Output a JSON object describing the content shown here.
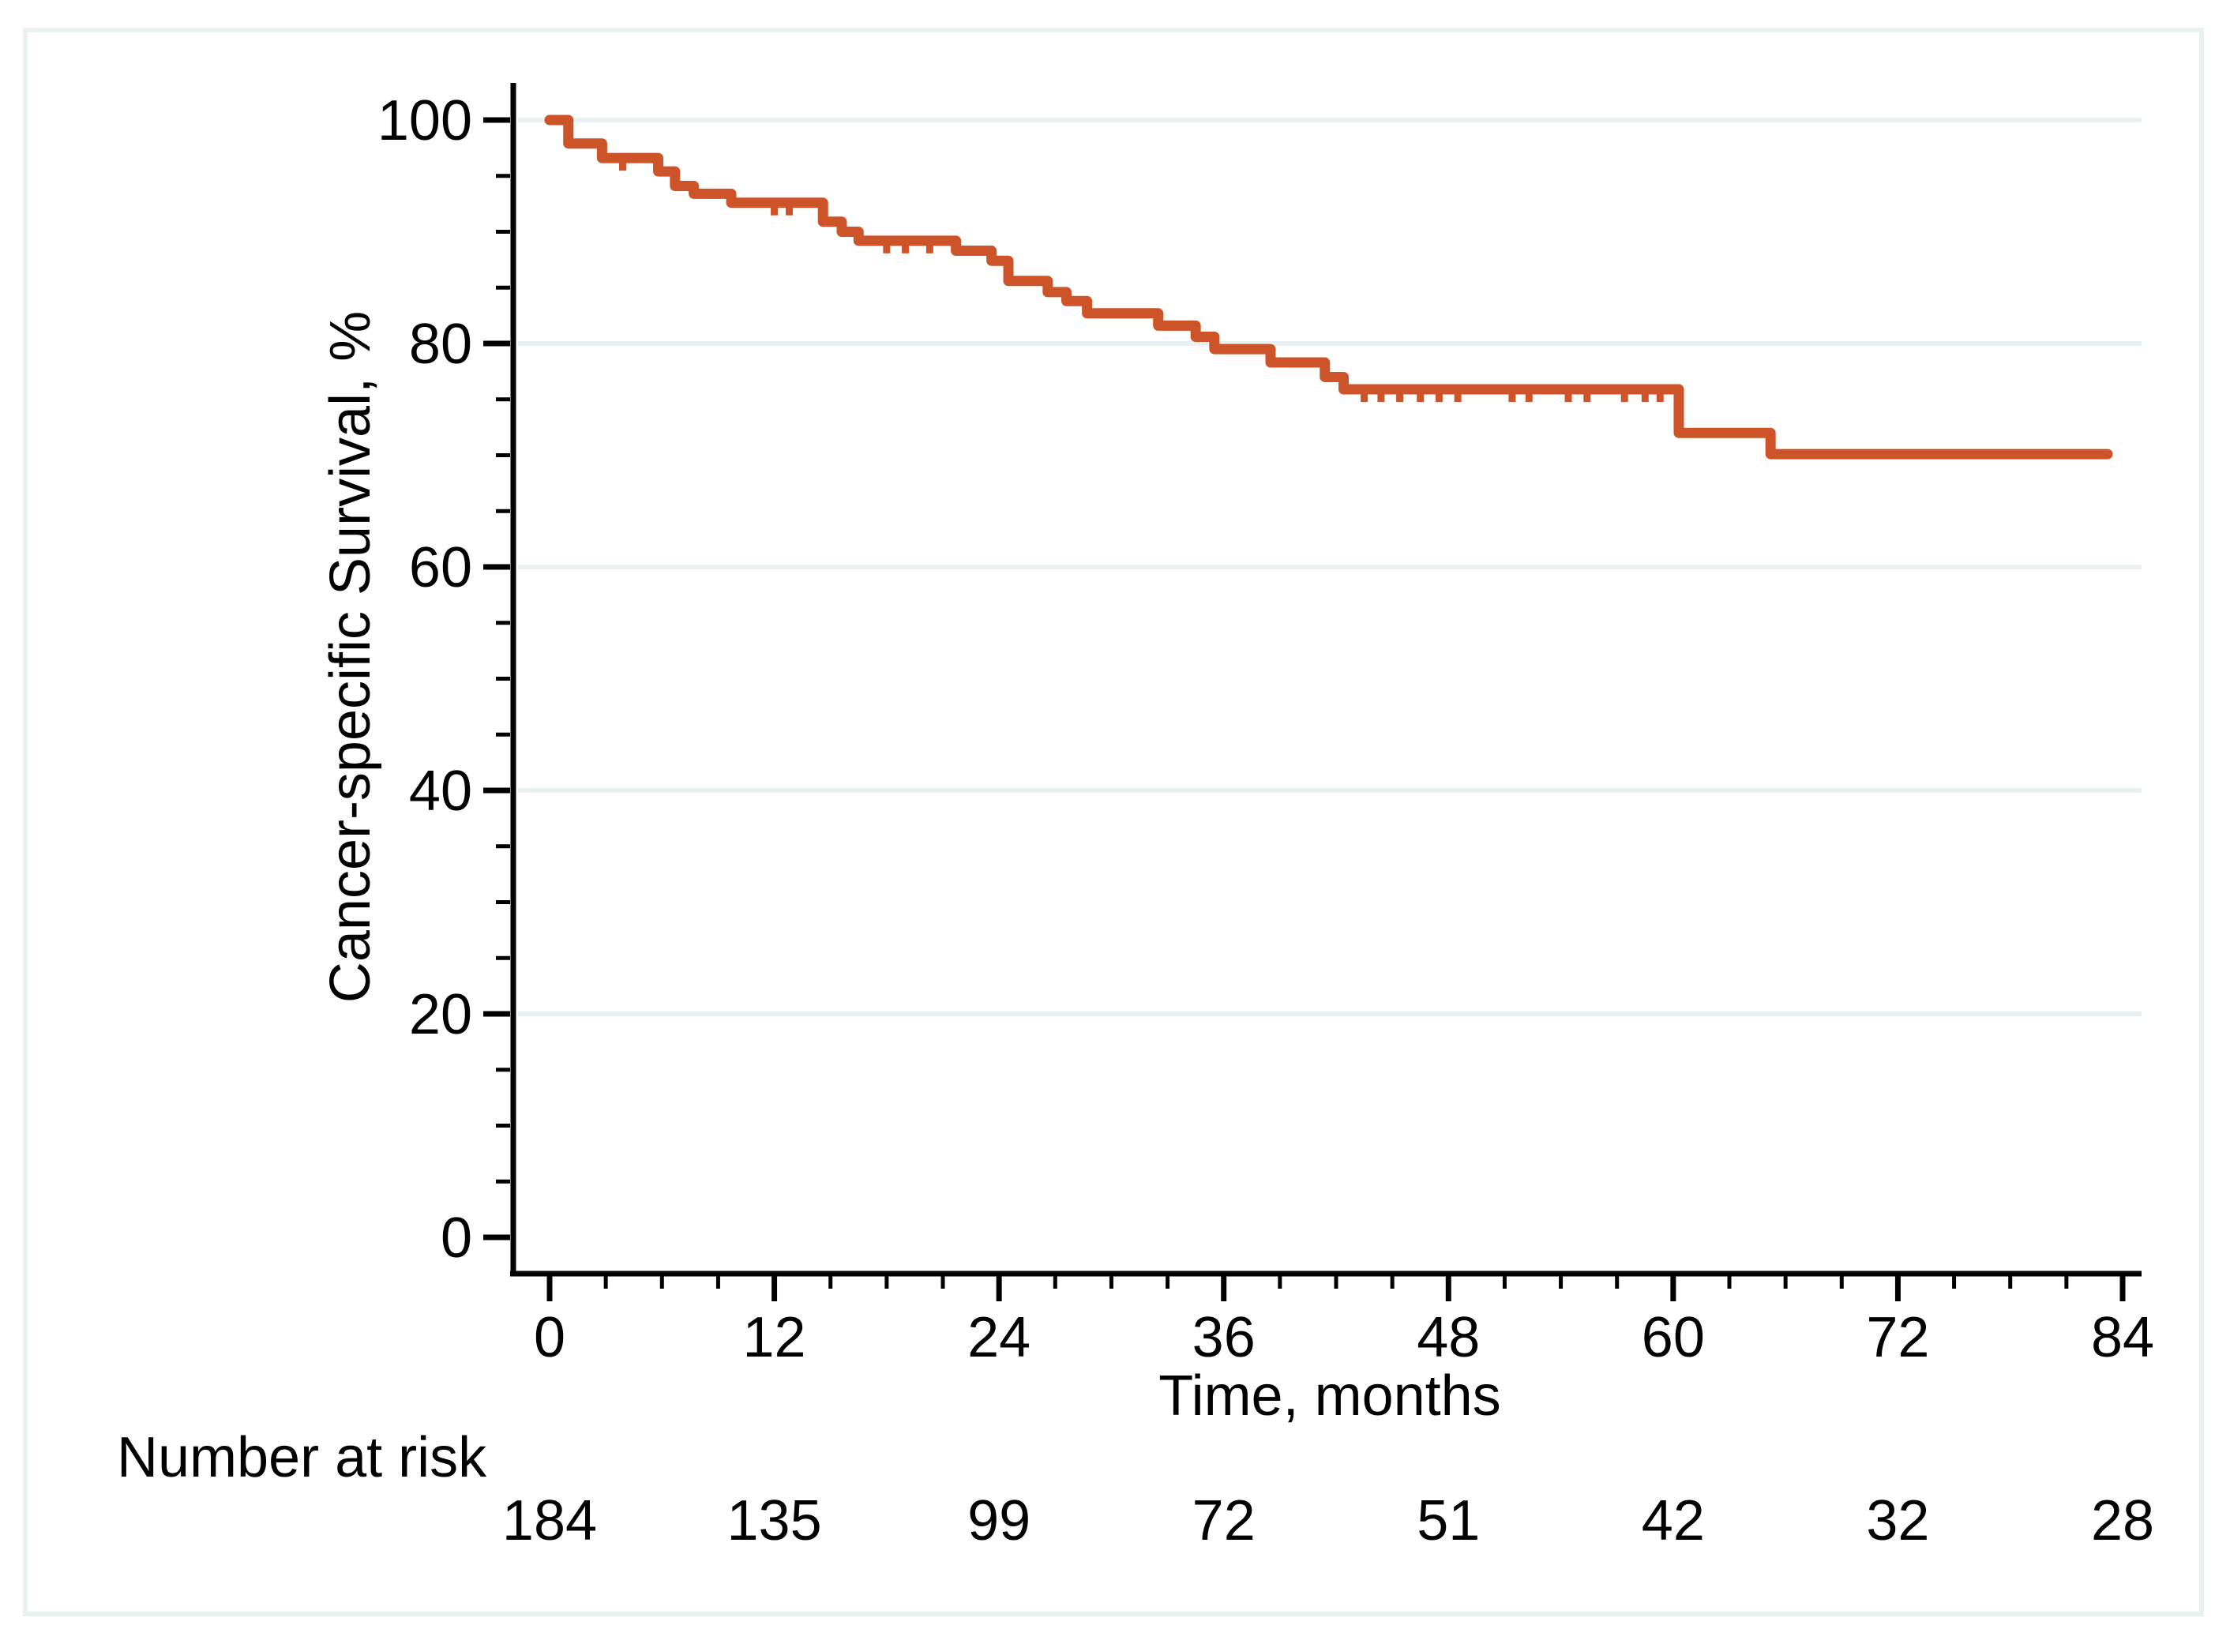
{
  "figure": {
    "background": "#ffffff",
    "border_color": "#e8f0f0",
    "axis_color": "#000000",
    "gridline_color": "#e8f0f1"
  },
  "chart_data": {
    "type": "line",
    "subtype": "kaplan-meier-step",
    "title": "",
    "xlabel": "Time, months",
    "ylabel": "Cancer-specific Survival, %",
    "xlim": [
      0,
      84
    ],
    "ylim": [
      0,
      100
    ],
    "grid": "horizontal-major",
    "legend": "none",
    "x_ticks": {
      "major": [
        0,
        12,
        24,
        36,
        48,
        60,
        72,
        84
      ],
      "minor_step": 3
    },
    "y_ticks": {
      "major": [
        0,
        20,
        40,
        60,
        80,
        100
      ],
      "minor_step": 5
    },
    "series": [
      {
        "name": "Cancer-specific survival",
        "color": "#cc5428",
        "end_time": 83.2,
        "steps": [
          [
            0,
            100
          ],
          [
            1.0,
            97.9
          ],
          [
            2.8,
            96.6
          ],
          [
            5.8,
            95.4
          ],
          [
            6.7,
            94.1
          ],
          [
            7.7,
            93.4
          ],
          [
            9.7,
            92.6
          ],
          [
            14.6,
            90.9
          ],
          [
            15.6,
            90.0
          ],
          [
            16.5,
            89.2
          ],
          [
            21.7,
            88.3
          ],
          [
            23.6,
            87.4
          ],
          [
            24.5,
            85.6
          ],
          [
            26.6,
            84.6
          ],
          [
            27.6,
            83.8
          ],
          [
            28.7,
            82.7
          ],
          [
            32.5,
            81.6
          ],
          [
            34.5,
            80.6
          ],
          [
            35.5,
            79.5
          ],
          [
            38.5,
            78.3
          ],
          [
            41.4,
            77.0
          ],
          [
            42.4,
            75.9
          ],
          [
            60.3,
            72.0
          ],
          [
            65.2,
            70.1
          ]
        ],
        "censor_marks": [
          3.9,
          12.0,
          12.8,
          18.0,
          19.0,
          20.3,
          43.5,
          44.4,
          45.4,
          46.5,
          47.5,
          48.5,
          51.4,
          52.3,
          54.4,
          55.4,
          57.4,
          58.5,
          59.3
        ]
      }
    ],
    "at_risk": {
      "label": "Number at risk",
      "times": [
        0,
        12,
        24,
        36,
        48,
        60,
        72,
        84
      ],
      "counts": [
        184,
        135,
        99,
        72,
        51,
        42,
        32,
        28
      ]
    }
  }
}
